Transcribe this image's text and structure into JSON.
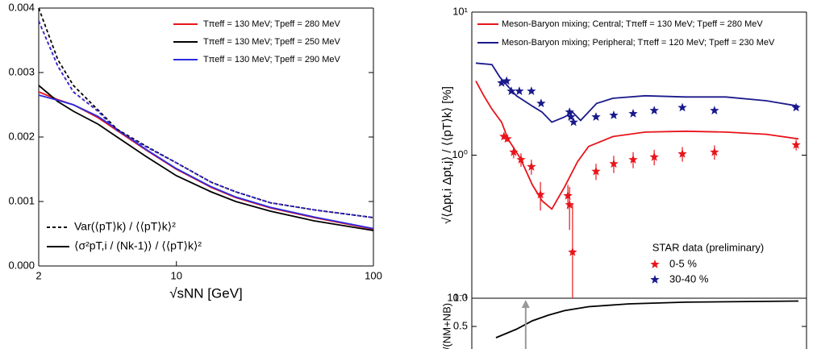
{
  "chart_data": [
    {
      "type": "line",
      "xscale": "log",
      "xlim": [
        2,
        100
      ],
      "xticks": [
        2,
        10,
        100
      ],
      "ylim": [
        0,
        0.004
      ],
      "yticks": [
        {
          "value": 0,
          "label": "0.000"
        },
        {
          "value": 0.001,
          "label": "0.001"
        },
        {
          "value": 0.002,
          "label": "0.002"
        },
        {
          "value": 0.003,
          "label": "0.003"
        },
        {
          "value": 0.004,
          "label": "0.004"
        }
      ],
      "xlabel": "√sNN [GeV]",
      "x": [
        2,
        2.5,
        3,
        4,
        5,
        7,
        10,
        15,
        20,
        30,
        50,
        100
      ],
      "series": [
        {
          "name": "Tπeff = 130 MeV; Tpeff = 280 MeV",
          "color": "#e8141b",
          "dashed": false,
          "values": [
            0.0027,
            0.00258,
            0.0025,
            0.0023,
            0.0021,
            0.0018,
            0.0015,
            0.00122,
            0.00106,
            0.0009,
            0.00075,
            0.00057
          ]
        },
        {
          "name": "Tπeff = 130 MeV; Tpeff = 250 MeV",
          "color": "#000000",
          "dashed": false,
          "values": [
            0.0028,
            0.00255,
            0.0024,
            0.0022,
            0.002,
            0.0017,
            0.0014,
            0.00115,
            0.001,
            0.00085,
            0.0007,
            0.00055
          ]
        },
        {
          "name": "Tπeff = 130 MeV; Tpeff = 290 MeV",
          "color": "#2b2be0",
          "dashed": false,
          "values": [
            0.00265,
            0.00257,
            0.0025,
            0.00232,
            0.00212,
            0.00181,
            0.00151,
            0.00123,
            0.00107,
            0.00091,
            0.00076,
            0.00058
          ]
        },
        {
          "color": "#e8141b",
          "dashed": true,
          "values": [
            0.0038,
            0.0031,
            0.0027,
            0.0024,
            0.0021,
            0.00185,
            0.0016,
            0.0013,
            0.00115,
            0.00098,
            0.00087,
            0.00075
          ]
        },
        {
          "color": "#000000",
          "dashed": true,
          "values": [
            0.004,
            0.0032,
            0.0028,
            0.00242,
            0.00212,
            0.00186,
            0.0016,
            0.0013,
            0.00115,
            0.00098,
            0.00087,
            0.00075
          ]
        },
        {
          "color": "#2b2be0",
          "dashed": true,
          "values": [
            0.0038,
            0.0031,
            0.0027,
            0.0024,
            0.0021,
            0.00185,
            0.0016,
            0.0013,
            0.00115,
            0.00098,
            0.00087,
            0.00075
          ]
        }
      ],
      "style_legend": [
        {
          "label": "Var(⟨pT⟩k) / ⟨⟨pT⟩k⟩²",
          "dashed": true
        },
        {
          "label": "⟨σ²pT,i / (Nk-1)⟩ / ⟨⟨pT⟩k⟩²",
          "dashed": false
        }
      ]
    },
    {
      "type": "line",
      "yscale": "log",
      "xlim": [
        0,
        100
      ],
      "ylim": [
        0.1,
        10
      ],
      "yticks": [
        {
          "value": 0.1,
          "label": "10⁻¹"
        },
        {
          "value": 1,
          "label": "10⁰"
        },
        {
          "value": 10,
          "label": "10¹"
        }
      ],
      "ylabel": "√⟨Δpt,i Δpt,j⟩ / ⟨⟨pT⟩k⟩ [%]",
      "series": [
        {
          "name": "Meson-Baryon mixing; Central; Tπeff = 130 MeV; Tpeff = 280 MeV",
          "color": "#e8141b",
          "x": [
            1.2,
            3.6,
            6,
            8.9,
            10.8,
            14.5,
            18.1,
            21,
            23.9,
            27.7,
            31.6,
            34.9,
            42.2,
            51.8,
            63.9,
            75.9,
            88,
            97.6
          ],
          "values": [
            3.3,
            2.6,
            2.1,
            1.7,
            1.3,
            0.95,
            0.62,
            0.48,
            0.42,
            0.6,
            0.9,
            1.15,
            1.35,
            1.45,
            1.47,
            1.45,
            1.4,
            1.3
          ]
        },
        {
          "name": "Meson-Baryon mixing; Peripheral; Tπeff = 120 MeV; Tpeff = 230 MeV",
          "color": "#1a1a8c",
          "x": [
            1.2,
            6,
            8.4,
            13.3,
            18.1,
            21,
            23.9,
            27.7,
            30.1,
            32.5,
            37.3,
            42.2,
            51.8,
            63.9,
            75.9,
            88,
            97.6
          ],
          "values": [
            4.4,
            4.3,
            3.5,
            2.6,
            2.2,
            2.0,
            1.7,
            1.85,
            2.0,
            1.75,
            2.3,
            2.5,
            2.6,
            2.55,
            2.55,
            2.4,
            2.2
          ]
        }
      ],
      "points": {
        "title": "STAR data (preliminary)",
        "series": [
          {
            "name": "0-5 %",
            "color": "#e8141b",
            "x": [
              9.6,
              10.6,
              12.5,
              14.7,
              17.8,
              20.5,
              28.7,
              29.2,
              30.1,
              37.1,
              42.4,
              48.2,
              54.5,
              62.9,
              72.5,
              96.9
            ],
            "values": [
              1.35,
              1.3,
              1.05,
              0.93,
              0.83,
              0.53,
              0.52,
              0.45,
              0.21,
              0.77,
              0.87,
              0.93,
              0.97,
              1.02,
              1.05,
              1.18
            ],
            "errors": [
              0.06,
              0.06,
              0.1,
              0.1,
              0.1,
              0.12,
              0.1,
              0.15,
              0.25,
              0.1,
              0.12,
              0.12,
              0.12,
              0.12,
              0.12,
              0.1
            ]
          },
          {
            "name": "30-40 %",
            "color": "#1a1a8c",
            "x": [
              8.9,
              10.4,
              11.8,
              14.2,
              17.8,
              20.7,
              29.2,
              29.6,
              30.4,
              37.1,
              42.4,
              48.2,
              54.5,
              62.9,
              72.5,
              96.9
            ],
            "values": [
              3.2,
              3.3,
              2.8,
              2.8,
              2.8,
              2.3,
              2.0,
              1.85,
              1.7,
              1.85,
              1.9,
              1.95,
              2.05,
              2.15,
              2.05,
              2.15
            ]
          }
        ]
      }
    },
    {
      "type": "line",
      "xlim": [
        0,
        100
      ],
      "ylim": [
        0.1,
        1.0
      ],
      "yticks": [
        {
          "value": 1.0,
          "label": "1.0"
        },
        0.5
      ],
      "ylabel": "/(NM+NB)",
      "x": [
        7.2,
        13.3,
        18.1,
        22.9,
        27.7,
        34.9,
        47,
        63.9,
        97.6
      ],
      "values": [
        0.3,
        0.45,
        0.6,
        0.7,
        0.78,
        0.85,
        0.9,
        0.93,
        0.95
      ],
      "color": "#000000",
      "arrow_x": 16.1
    }
  ]
}
